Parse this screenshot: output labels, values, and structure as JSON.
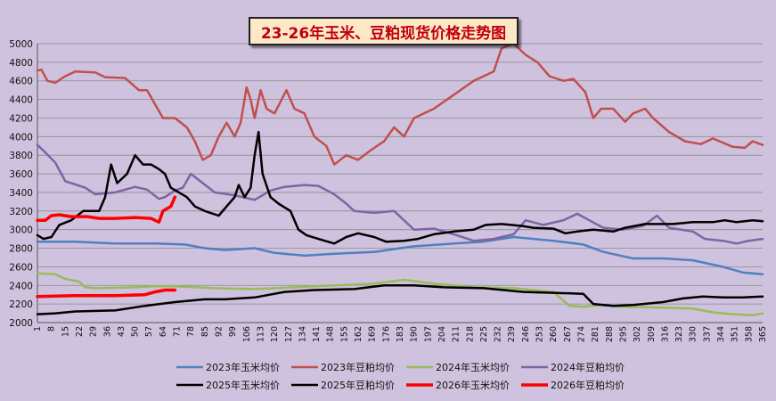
{
  "chart_data": {
    "type": "line",
    "title": "23-26年玉米、豆粕现货价格走势图",
    "xlabel": "",
    "ylabel": "",
    "ylim": [
      2000,
      5000
    ],
    "yticks": [
      2000,
      2200,
      2400,
      2600,
      2800,
      3000,
      3200,
      3400,
      3600,
      3800,
      4000,
      4200,
      4400,
      4600,
      4800,
      5000
    ],
    "xlim": [
      1,
      365
    ],
    "xtick_labels": [
      "1",
      "8",
      "15",
      "22",
      "29",
      "36",
      "43",
      "50",
      "57",
      "64",
      "71",
      "78",
      "85",
      "92",
      "99",
      "106",
      "113",
      "120",
      "127",
      "134",
      "141",
      "148",
      "155",
      "162",
      "169",
      "176",
      "183",
      "190",
      "197",
      "204",
      "211",
      "218",
      "225",
      "232",
      "239",
      "246",
      "253",
      "260",
      "267",
      "274",
      "281",
      "288",
      "295",
      "302",
      "309",
      "316",
      "323",
      "330",
      "337",
      "344",
      "351",
      "358",
      "365"
    ],
    "grid": "horizontal",
    "legend_position": "bottom",
    "series": [
      {
        "name": "2023年玉米均价",
        "color": "#4f81bd",
        "width": 2.5,
        "points": [
          [
            1,
            2870
          ],
          [
            20,
            2870
          ],
          [
            40,
            2850
          ],
          [
            60,
            2850
          ],
          [
            75,
            2840
          ],
          [
            85,
            2800
          ],
          [
            95,
            2780
          ],
          [
            110,
            2800
          ],
          [
            120,
            2750
          ],
          [
            135,
            2720
          ],
          [
            150,
            2740
          ],
          [
            170,
            2760
          ],
          [
            190,
            2820
          ],
          [
            210,
            2850
          ],
          [
            225,
            2870
          ],
          [
            240,
            2920
          ],
          [
            260,
            2880
          ],
          [
            275,
            2840
          ],
          [
            285,
            2760
          ],
          [
            300,
            2690
          ],
          [
            315,
            2690
          ],
          [
            330,
            2670
          ],
          [
            345,
            2600
          ],
          [
            355,
            2540
          ],
          [
            365,
            2520
          ]
        ]
      },
      {
        "name": "2023年豆粕均价",
        "color": "#c0504d",
        "width": 2.5,
        "points": [
          [
            1,
            4710
          ],
          [
            3,
            4720
          ],
          [
            6,
            4600
          ],
          [
            10,
            4580
          ],
          [
            15,
            4650
          ],
          [
            20,
            4700
          ],
          [
            30,
            4690
          ],
          [
            35,
            4640
          ],
          [
            45,
            4630
          ],
          [
            52,
            4500
          ],
          [
            56,
            4500
          ],
          [
            60,
            4350
          ],
          [
            64,
            4200
          ],
          [
            70,
            4200
          ],
          [
            76,
            4100
          ],
          [
            80,
            3950
          ],
          [
            84,
            3750
          ],
          [
            88,
            3800
          ],
          [
            92,
            4000
          ],
          [
            96,
            4150
          ],
          [
            100,
            4000
          ],
          [
            103,
            4150
          ],
          [
            106,
            4530
          ],
          [
            108,
            4400
          ],
          [
            110,
            4200
          ],
          [
            113,
            4500
          ],
          [
            116,
            4300
          ],
          [
            120,
            4250
          ],
          [
            126,
            4500
          ],
          [
            130,
            4300
          ],
          [
            135,
            4250
          ],
          [
            140,
            4000
          ],
          [
            146,
            3900
          ],
          [
            150,
            3700
          ],
          [
            156,
            3800
          ],
          [
            162,
            3750
          ],
          [
            168,
            3850
          ],
          [
            175,
            3950
          ],
          [
            180,
            4100
          ],
          [
            185,
            4000
          ],
          [
            190,
            4200
          ],
          [
            200,
            4300
          ],
          [
            210,
            4450
          ],
          [
            220,
            4600
          ],
          [
            225,
            4650
          ],
          [
            230,
            4700
          ],
          [
            234,
            4950
          ],
          [
            240,
            5000
          ],
          [
            246,
            4880
          ],
          [
            252,
            4800
          ],
          [
            258,
            4650
          ],
          [
            265,
            4600
          ],
          [
            270,
            4620
          ],
          [
            276,
            4480
          ],
          [
            280,
            4200
          ],
          [
            284,
            4300
          ],
          [
            290,
            4300
          ],
          [
            296,
            4160
          ],
          [
            300,
            4250
          ],
          [
            306,
            4300
          ],
          [
            310,
            4200
          ],
          [
            318,
            4050
          ],
          [
            326,
            3950
          ],
          [
            334,
            3920
          ],
          [
            340,
            3980
          ],
          [
            350,
            3890
          ],
          [
            356,
            3880
          ],
          [
            360,
            3950
          ],
          [
            365,
            3910
          ]
        ]
      },
      {
        "name": "2024年玉米均价",
        "color": "#9bbb59",
        "width": 2.5,
        "points": [
          [
            1,
            2530
          ],
          [
            10,
            2520
          ],
          [
            15,
            2470
          ],
          [
            22,
            2440
          ],
          [
            25,
            2380
          ],
          [
            30,
            2370
          ],
          [
            50,
            2380
          ],
          [
            60,
            2390
          ],
          [
            70,
            2390
          ],
          [
            90,
            2370
          ],
          [
            110,
            2360
          ],
          [
            130,
            2380
          ],
          [
            150,
            2400
          ],
          [
            170,
            2420
          ],
          [
            185,
            2460
          ],
          [
            200,
            2420
          ],
          [
            220,
            2380
          ],
          [
            240,
            2370
          ],
          [
            260,
            2330
          ],
          [
            268,
            2180
          ],
          [
            275,
            2170
          ],
          [
            283,
            2190
          ],
          [
            295,
            2170
          ],
          [
            315,
            2160
          ],
          [
            330,
            2150
          ],
          [
            340,
            2110
          ],
          [
            350,
            2090
          ],
          [
            360,
            2080
          ],
          [
            365,
            2100
          ]
        ]
      },
      {
        "name": "2024年豆粕均价",
        "color": "#8064a2",
        "width": 2.5,
        "points": [
          [
            1,
            3910
          ],
          [
            4,
            3850
          ],
          [
            10,
            3720
          ],
          [
            15,
            3520
          ],
          [
            18,
            3500
          ],
          [
            25,
            3450
          ],
          [
            30,
            3380
          ],
          [
            40,
            3400
          ],
          [
            50,
            3460
          ],
          [
            56,
            3430
          ],
          [
            62,
            3330
          ],
          [
            65,
            3350
          ],
          [
            70,
            3420
          ],
          [
            74,
            3450
          ],
          [
            78,
            3600
          ],
          [
            84,
            3500
          ],
          [
            90,
            3400
          ],
          [
            100,
            3370
          ],
          [
            110,
            3320
          ],
          [
            118,
            3420
          ],
          [
            125,
            3460
          ],
          [
            135,
            3480
          ],
          [
            142,
            3470
          ],
          [
            150,
            3380
          ],
          [
            156,
            3280
          ],
          [
            160,
            3200
          ],
          [
            170,
            3180
          ],
          [
            180,
            3200
          ],
          [
            190,
            3000
          ],
          [
            200,
            3010
          ],
          [
            210,
            2950
          ],
          [
            220,
            2880
          ],
          [
            230,
            2900
          ],
          [
            240,
            2950
          ],
          [
            246,
            3100
          ],
          [
            255,
            3050
          ],
          [
            265,
            3100
          ],
          [
            272,
            3170
          ],
          [
            278,
            3100
          ],
          [
            285,
            3020
          ],
          [
            295,
            3000
          ],
          [
            305,
            3040
          ],
          [
            312,
            3150
          ],
          [
            318,
            3020
          ],
          [
            330,
            2980
          ],
          [
            336,
            2900
          ],
          [
            345,
            2880
          ],
          [
            352,
            2850
          ],
          [
            358,
            2880
          ],
          [
            365,
            2900
          ]
        ]
      },
      {
        "name": "2025年玉米均价",
        "color": "#000000",
        "width": 2.5,
        "points": [
          [
            1,
            2940
          ],
          [
            4,
            2900
          ],
          [
            8,
            2920
          ],
          [
            12,
            3050
          ],
          [
            18,
            3100
          ],
          [
            24,
            3200
          ],
          [
            32,
            3200
          ],
          [
            35,
            3350
          ],
          [
            38,
            3700
          ],
          [
            41,
            3500
          ],
          [
            46,
            3600
          ],
          [
            50,
            3800
          ],
          [
            54,
            3700
          ],
          [
            58,
            3700
          ],
          [
            62,
            3650
          ],
          [
            65,
            3600
          ],
          [
            68,
            3450
          ],
          [
            72,
            3400
          ],
          [
            76,
            3350
          ],
          [
            80,
            3250
          ],
          [
            85,
            3200
          ],
          [
            92,
            3150
          ],
          [
            96,
            3250
          ],
          [
            100,
            3350
          ],
          [
            102,
            3480
          ],
          [
            105,
            3350
          ],
          [
            108,
            3450
          ],
          [
            110,
            3800
          ],
          [
            112,
            4050
          ],
          [
            114,
            3600
          ],
          [
            118,
            3350
          ],
          [
            122,
            3280
          ],
          [
            128,
            3200
          ],
          [
            132,
            3000
          ],
          [
            136,
            2940
          ],
          [
            142,
            2900
          ],
          [
            150,
            2850
          ],
          [
            156,
            2920
          ],
          [
            162,
            2960
          ],
          [
            170,
            2920
          ],
          [
            176,
            2870
          ],
          [
            185,
            2880
          ],
          [
            192,
            2900
          ],
          [
            200,
            2950
          ],
          [
            210,
            2980
          ],
          [
            220,
            3000
          ],
          [
            226,
            3050
          ],
          [
            234,
            3060
          ],
          [
            244,
            3040
          ],
          [
            250,
            3020
          ],
          [
            260,
            3010
          ],
          [
            266,
            2960
          ],
          [
            272,
            2980
          ],
          [
            280,
            3000
          ],
          [
            290,
            2980
          ],
          [
            296,
            3020
          ],
          [
            306,
            3060
          ],
          [
            320,
            3060
          ],
          [
            330,
            3080
          ],
          [
            340,
            3080
          ],
          [
            346,
            3100
          ],
          [
            352,
            3080
          ],
          [
            360,
            3100
          ],
          [
            365,
            3090
          ]
        ]
      },
      {
        "name": "2025年豆粕均价",
        "color": "#000000",
        "width": 2.5,
        "points": [
          [
            1,
            2090
          ],
          [
            10,
            2100
          ],
          [
            20,
            2120
          ],
          [
            40,
            2130
          ],
          [
            55,
            2180
          ],
          [
            70,
            2220
          ],
          [
            85,
            2250
          ],
          [
            95,
            2250
          ],
          [
            110,
            2270
          ],
          [
            125,
            2330
          ],
          [
            140,
            2350
          ],
          [
            160,
            2360
          ],
          [
            175,
            2400
          ],
          [
            190,
            2400
          ],
          [
            205,
            2380
          ],
          [
            225,
            2370
          ],
          [
            245,
            2330
          ],
          [
            260,
            2320
          ],
          [
            275,
            2310
          ],
          [
            280,
            2200
          ],
          [
            290,
            2180
          ],
          [
            300,
            2190
          ],
          [
            315,
            2220
          ],
          [
            325,
            2260
          ],
          [
            335,
            2280
          ],
          [
            345,
            2270
          ],
          [
            355,
            2270
          ],
          [
            365,
            2280
          ]
        ]
      },
      {
        "name": "2026年玉米均价",
        "color": "#ff0000",
        "width": 3.5,
        "points": [
          [
            1,
            3100
          ],
          [
            5,
            3100
          ],
          [
            8,
            3150
          ],
          [
            12,
            3160
          ],
          [
            18,
            3140
          ],
          [
            26,
            3140
          ],
          [
            32,
            3120
          ],
          [
            40,
            3120
          ],
          [
            50,
            3130
          ],
          [
            58,
            3120
          ],
          [
            62,
            3080
          ],
          [
            64,
            3200
          ],
          [
            68,
            3250
          ],
          [
            70,
            3350
          ]
        ]
      },
      {
        "name": "2026年豆粕均价",
        "color": "#ff0000",
        "width": 3.5,
        "points": [
          [
            1,
            2280
          ],
          [
            20,
            2290
          ],
          [
            40,
            2290
          ],
          [
            55,
            2300
          ],
          [
            60,
            2330
          ],
          [
            65,
            2350
          ],
          [
            70,
            2350
          ]
        ]
      }
    ]
  }
}
